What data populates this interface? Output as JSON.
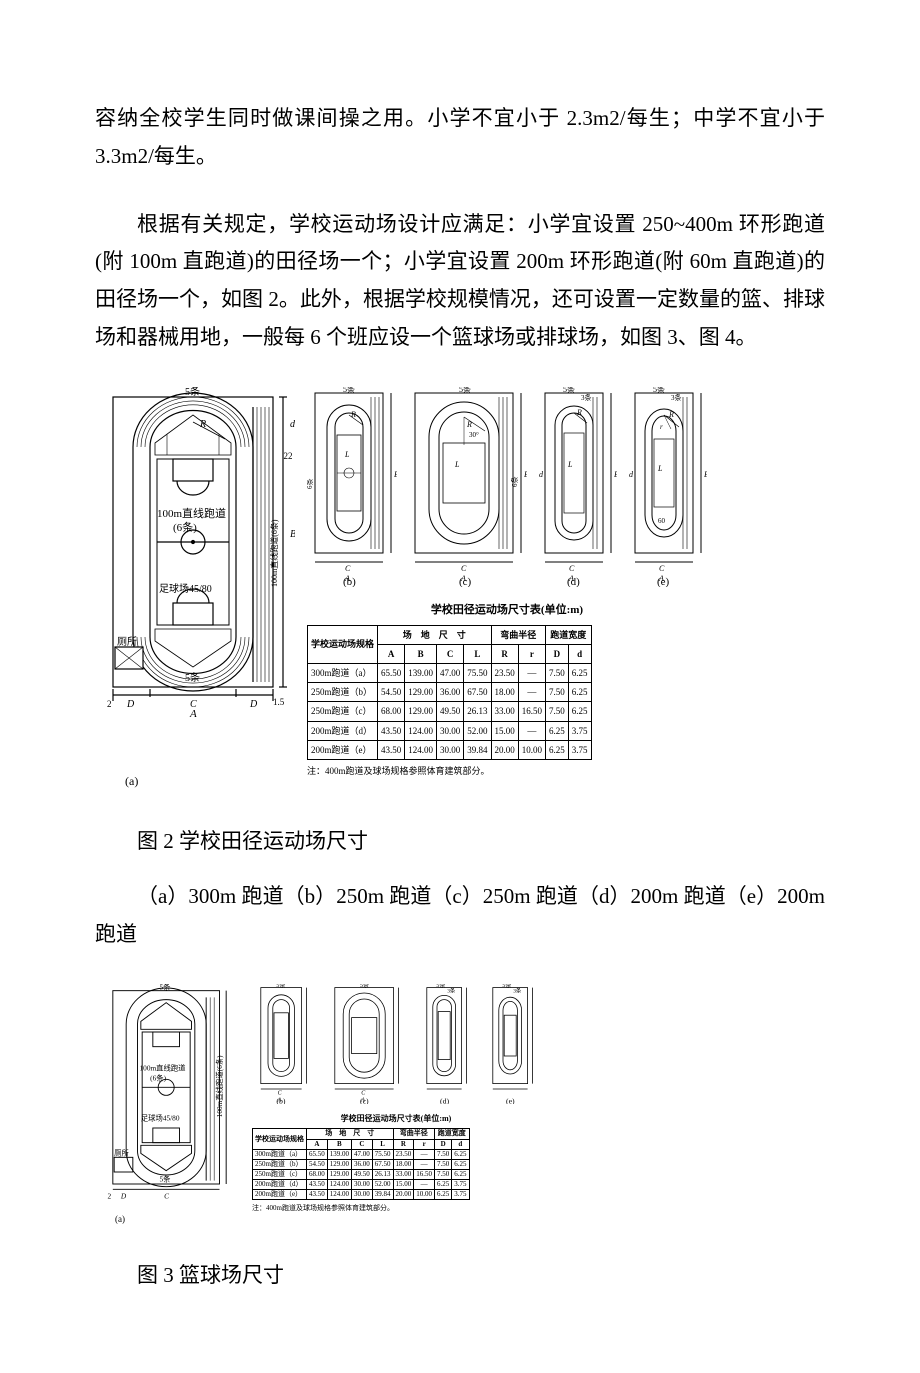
{
  "paragraphs": {
    "p1": "容纳全校学生同时做课间操之用。小学不宜小于 2.3m2/每生；中学不宜小于 3.3m2/每生。",
    "p2": "根据有关规定，学校运动场设计应满足：小学宜设置 250~400m 环形跑道(附 100m 直跑道)的田径场一个；小学宜设置 200m 环形跑道(附 60m 直跑道)的田径场一个，如图 2。此外，根据学校规模情况，还可设置一定数量的篮、排球场和器械用地，一般每 6 个班应设一个篮球场或排球场，如图 3、图 4。"
  },
  "fig2": {
    "caption": "图 2 学校田径运动场尺寸",
    "subcaption": "（a）300m 跑道（b）250m 跑道（c）250m 跑道（d）200m 跑道（e）200m 跑道",
    "labels": {
      "a_lanes": "5条",
      "a_straight": "100m直线跑道",
      "a_straight_lanes": "(6条)",
      "a_football": "足球场45/80",
      "a_toilet": "厕所",
      "a_side": "100m直线跑道(6条)",
      "b": "(b)",
      "c": "(c)",
      "d": "(d)",
      "e": "(e)",
      "a": "(a)",
      "axis_A": "A",
      "axis_B": "B",
      "axis_C": "C",
      "axis_D": "D",
      "axis_R": "R",
      "axis_L": "L",
      "axis_r": "r",
      "axis_d": "d",
      "lanes5": "5条",
      "lanes3": "3条",
      "lanes6": "6条",
      "angle30": "30°"
    },
    "table": {
      "title": "学校田径运动场尺寸表(单位:m)",
      "header_group1": "场　地　尺　寸",
      "header_group2": "弯曲半径",
      "header_group3": "跑道宽度",
      "header_spec": "学校运动场规格",
      "cols": [
        "A",
        "B",
        "C",
        "L",
        "R",
        "r",
        "D",
        "d"
      ],
      "rows": [
        {
          "spec": "300m跑道（a）",
          "A": "65.50",
          "B": "139.00",
          "C": "47.00",
          "L": "75.50",
          "R": "23.50",
          "r": "—",
          "D": "7.50",
          "d": "6.25"
        },
        {
          "spec": "250m跑道（b）",
          "A": "54.50",
          "B": "129.00",
          "C": "36.00",
          "L": "67.50",
          "R": "18.00",
          "r": "—",
          "D": "7.50",
          "d": "6.25"
        },
        {
          "spec": "250m跑道（c）",
          "A": "68.00",
          "B": "129.00",
          "C": "49.50",
          "L": "26.13",
          "R": "33.00",
          "r": "16.50",
          "D": "7.50",
          "d": "6.25"
        },
        {
          "spec": "200m跑道（d）",
          "A": "43.50",
          "B": "124.00",
          "C": "30.00",
          "L": "52.00",
          "R": "15.00",
          "r": "—",
          "D": "6.25",
          "d": "3.75"
        },
        {
          "spec": "200m跑道（e）",
          "A": "43.50",
          "B": "124.00",
          "C": "30.00",
          "L": "39.84",
          "R": "20.00",
          "r": "10.00",
          "D": "6.25",
          "d": "3.75"
        }
      ],
      "note": "注：400m跑道及球场规格参照体育建筑部分。"
    }
  },
  "fig3": {
    "caption": "图 3 篮球场尺寸"
  },
  "style": {
    "line_color": "#000000",
    "bg": "#ffffff",
    "font_body": 21,
    "font_diag_label": 10,
    "font_diag_small": 8
  }
}
